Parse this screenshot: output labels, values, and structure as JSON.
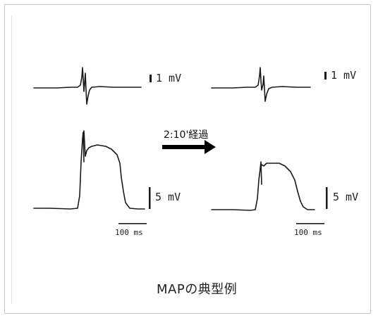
{
  "figure": {
    "ecg_scale_label": "1 mV",
    "map_scale_label": "5 mV",
    "time_scale_label": "100 ms",
    "arrow_label": "2:10'経過",
    "caption": "MAPの典型例"
  },
  "colors": {
    "trace": "#1a1a1a",
    "frame": "#c8c8c8"
  }
}
